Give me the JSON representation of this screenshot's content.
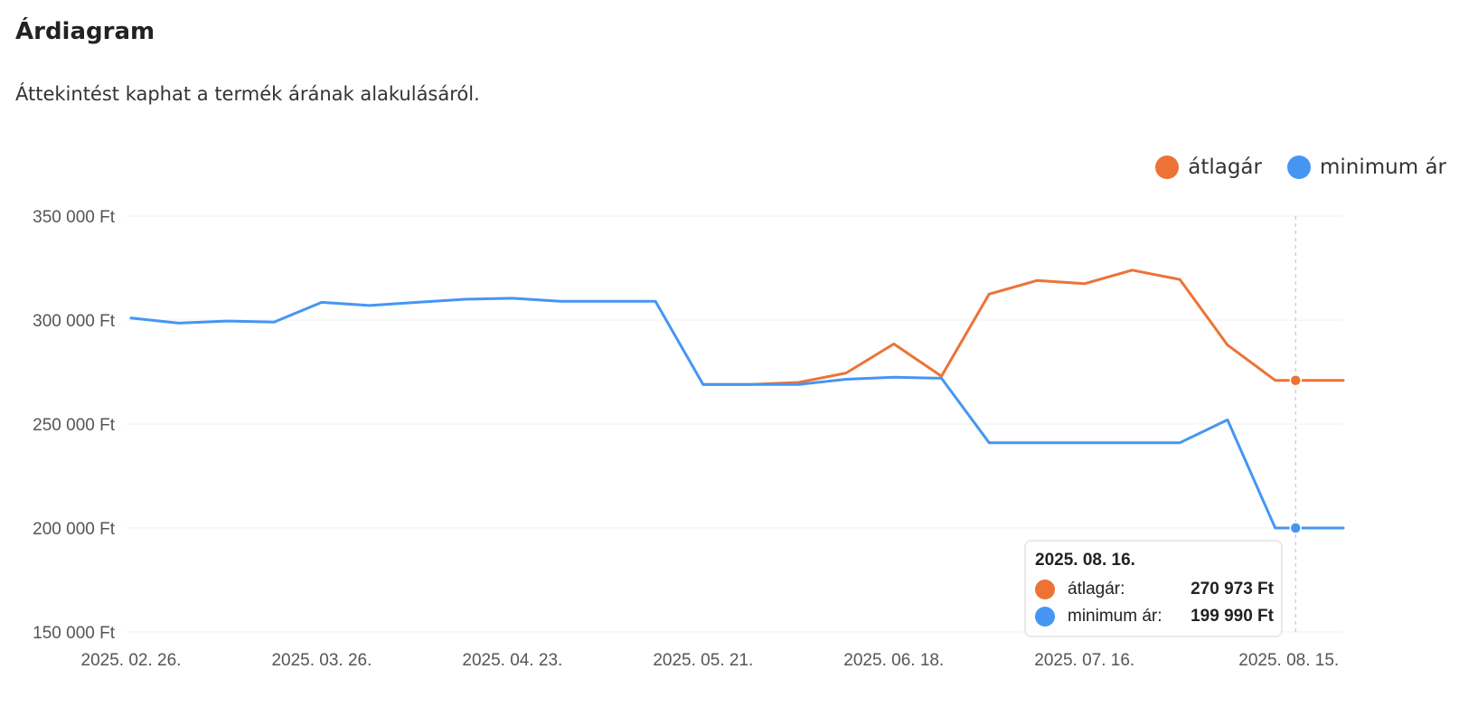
{
  "header": {
    "title": "Árdiagram",
    "subtitle": "Áttekintést kaphat a termék árának alakulásáról."
  },
  "colors": {
    "orange": "#ed7236",
    "blue": "#4596f3",
    "grid": "#f0f0f0",
    "tick": "#555555"
  },
  "chart_data": {
    "type": "line",
    "title": "",
    "xlabel": "",
    "ylabel": "",
    "ylim": [
      150000,
      350000
    ],
    "yticks": [
      350000,
      300000,
      250000,
      200000,
      150000
    ],
    "ytick_labels": [
      "350 000 Ft",
      "300 000 Ft",
      "250 000 Ft",
      "200 000 Ft",
      "150 000 Ft"
    ],
    "xticks": [
      "2025-02-26",
      "2025-03-26",
      "2025-04-23",
      "2025-05-21",
      "2025-06-18",
      "2025-07-16",
      "2025-08-15"
    ],
    "xtick_labels": [
      "2025. 02. 26.",
      "2025. 03. 26.",
      "2025. 04. 23.",
      "2025. 05. 21.",
      "2025. 06. 18.",
      "2025. 07. 16.",
      "2025. 08. 15."
    ],
    "x_range": [
      "2025-02-26",
      "2025-08-23"
    ],
    "grid": true,
    "legend_position": "top-right",
    "series": [
      {
        "name": "átlagár",
        "color": "#ed7236",
        "x": [
          "2025-05-21",
          "2025-05-28",
          "2025-06-04",
          "2025-06-11",
          "2025-06-18",
          "2025-06-25",
          "2025-07-02",
          "2025-07-09",
          "2025-07-16",
          "2025-07-23",
          "2025-07-30",
          "2025-08-06",
          "2025-08-13",
          "2025-08-16",
          "2025-08-23"
        ],
        "values": [
          269000,
          269000,
          270000,
          274500,
          288500,
          273000,
          312500,
          319000,
          317500,
          324000,
          319500,
          288000,
          271000,
          270973,
          271000
        ]
      },
      {
        "name": "minimum ár",
        "color": "#4596f3",
        "x": [
          "2025-02-26",
          "2025-03-05",
          "2025-03-12",
          "2025-03-19",
          "2025-03-26",
          "2025-04-02",
          "2025-04-09",
          "2025-04-16",
          "2025-04-23",
          "2025-04-30",
          "2025-05-07",
          "2025-05-14",
          "2025-05-21",
          "2025-05-28",
          "2025-06-04",
          "2025-06-11",
          "2025-06-18",
          "2025-06-25",
          "2025-07-02",
          "2025-07-09",
          "2025-07-16",
          "2025-07-23",
          "2025-07-30",
          "2025-08-06",
          "2025-08-13",
          "2025-08-16",
          "2025-08-23"
        ],
        "values": [
          301000,
          298500,
          299500,
          299000,
          308500,
          307000,
          308500,
          310000,
          310500,
          309000,
          309000,
          309000,
          269000,
          269000,
          269000,
          271500,
          272500,
          272000,
          241000,
          241000,
          241000,
          241000,
          241000,
          252000,
          200000,
          199990,
          200000
        ]
      }
    ],
    "tooltip": {
      "date": "2025. 08. 16.",
      "x": "2025-08-16",
      "rows": [
        {
          "label": "átlagár:",
          "value": "270 973 Ft",
          "color": "#ed7236"
        },
        {
          "label": "minimum ár:",
          "value": "199 990 Ft",
          "color": "#4596f3"
        }
      ]
    }
  }
}
